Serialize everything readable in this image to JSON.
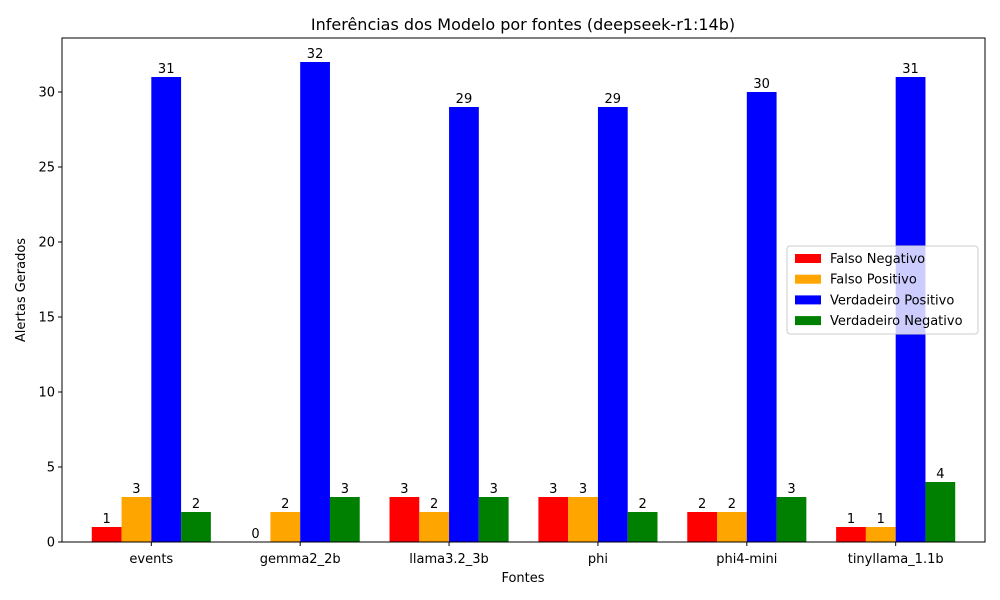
{
  "chart_data": {
    "type": "bar",
    "title": "Inferências dos Modelo por fontes (deepseek-r1:14b)",
    "xlabel": "Fontes",
    "ylabel": "Alertas Gerados",
    "categories": [
      "events",
      "gemma2_2b",
      "llama3.2_3b",
      "phi",
      "phi4-mini",
      "tinyllama_1.1b"
    ],
    "ylim": [
      0,
      33.6
    ],
    "yticks": [
      "0",
      "5",
      "10",
      "15",
      "20",
      "25",
      "30"
    ],
    "grid": false,
    "legend_position": "center-right",
    "series": [
      {
        "name": "Falso Negativo",
        "color": "#ff0000",
        "values": [
          1,
          0,
          3,
          3,
          2,
          1
        ],
        "labels": [
          "1",
          "0",
          "3",
          "3",
          "2",
          "1"
        ]
      },
      {
        "name": "Falso Positivo",
        "color": "#ffa500",
        "values": [
          3,
          2,
          2,
          3,
          2,
          1
        ],
        "labels": [
          "3",
          "2",
          "2",
          "3",
          "2",
          "1"
        ]
      },
      {
        "name": "Verdadeiro Positivo",
        "color": "#0000ff",
        "values": [
          31,
          32,
          29,
          29,
          30,
          31
        ],
        "labels": [
          "31",
          "32",
          "29",
          "29",
          "30",
          "31"
        ]
      },
      {
        "name": "Verdadeiro Negativo",
        "color": "#008000",
        "values": [
          2,
          3,
          3,
          2,
          3,
          4
        ],
        "labels": [
          "2",
          "3",
          "3",
          "2",
          "3",
          "4"
        ]
      }
    ]
  }
}
